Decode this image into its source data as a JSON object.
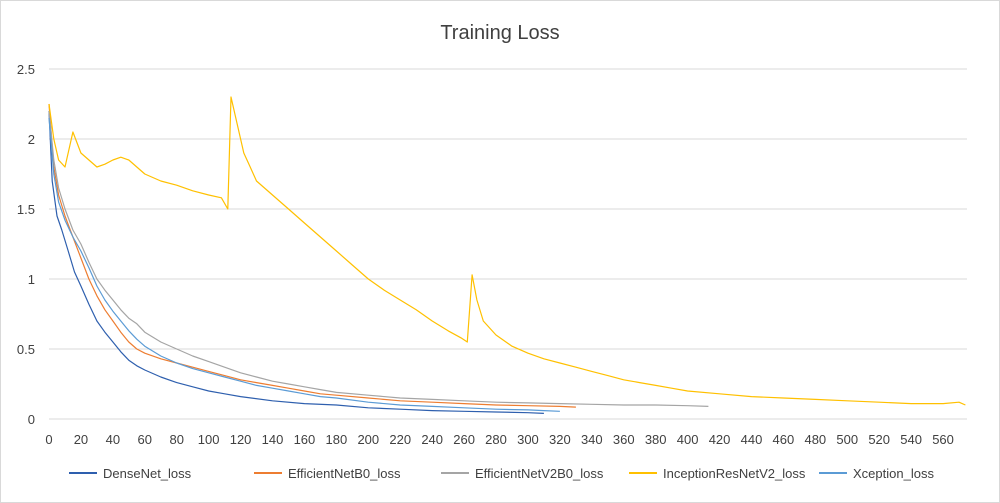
{
  "chart_data": {
    "type": "line",
    "title": "Training Loss",
    "xlabel": "",
    "ylabel": "",
    "xlim": [
      0,
      575
    ],
    "ylim": [
      0,
      2.5
    ],
    "x_ticks": [
      "0",
      "20",
      "40",
      "60",
      "80",
      "100",
      "120",
      "140",
      "160",
      "180",
      "200",
      "220",
      "240",
      "260",
      "280",
      "300",
      "320",
      "340",
      "360",
      "380",
      "400",
      "420",
      "440",
      "460",
      "480",
      "500",
      "520",
      "540",
      "560"
    ],
    "y_ticks": [
      "0",
      "0.5",
      "1",
      "1.5",
      "2",
      "2.5"
    ],
    "grid": true,
    "legend_position": "bottom",
    "series": [
      {
        "name": "DenseNet_loss",
        "color": "#2e5fae",
        "points": [
          [
            0,
            2.2
          ],
          [
            2,
            1.7
          ],
          [
            5,
            1.45
          ],
          [
            8,
            1.35
          ],
          [
            12,
            1.2
          ],
          [
            16,
            1.05
          ],
          [
            20,
            0.95
          ],
          [
            25,
            0.82
          ],
          [
            30,
            0.7
          ],
          [
            35,
            0.62
          ],
          [
            40,
            0.55
          ],
          [
            45,
            0.48
          ],
          [
            50,
            0.42
          ],
          [
            55,
            0.38
          ],
          [
            60,
            0.35
          ],
          [
            70,
            0.3
          ],
          [
            80,
            0.26
          ],
          [
            90,
            0.23
          ],
          [
            100,
            0.2
          ],
          [
            110,
            0.18
          ],
          [
            120,
            0.16
          ],
          [
            140,
            0.13
          ],
          [
            160,
            0.11
          ],
          [
            180,
            0.1
          ],
          [
            200,
            0.08
          ],
          [
            220,
            0.07
          ],
          [
            240,
            0.06
          ],
          [
            260,
            0.055
          ],
          [
            280,
            0.05
          ],
          [
            300,
            0.045
          ],
          [
            310,
            0.04
          ]
        ]
      },
      {
        "name": "EfficientNetB0_loss",
        "color": "#ed7d31",
        "points": [
          [
            0,
            2.25
          ],
          [
            3,
            1.8
          ],
          [
            6,
            1.6
          ],
          [
            10,
            1.45
          ],
          [
            15,
            1.3
          ],
          [
            20,
            1.15
          ],
          [
            25,
            1.0
          ],
          [
            30,
            0.88
          ],
          [
            35,
            0.78
          ],
          [
            40,
            0.7
          ],
          [
            45,
            0.62
          ],
          [
            50,
            0.55
          ],
          [
            55,
            0.5
          ],
          [
            60,
            0.47
          ],
          [
            70,
            0.43
          ],
          [
            80,
            0.4
          ],
          [
            90,
            0.37
          ],
          [
            100,
            0.34
          ],
          [
            110,
            0.31
          ],
          [
            120,
            0.28
          ],
          [
            130,
            0.26
          ],
          [
            140,
            0.24
          ],
          [
            150,
            0.22
          ],
          [
            160,
            0.2
          ],
          [
            170,
            0.18
          ],
          [
            180,
            0.17
          ],
          [
            200,
            0.15
          ],
          [
            220,
            0.13
          ],
          [
            240,
            0.12
          ],
          [
            260,
            0.11
          ],
          [
            280,
            0.1
          ],
          [
            300,
            0.095
          ],
          [
            320,
            0.09
          ],
          [
            330,
            0.085
          ]
        ]
      },
      {
        "name": "EfficientNetV2B0_loss",
        "color": "#a5a5a5",
        "points": [
          [
            0,
            2.2
          ],
          [
            3,
            1.85
          ],
          [
            6,
            1.65
          ],
          [
            10,
            1.5
          ],
          [
            15,
            1.35
          ],
          [
            20,
            1.25
          ],
          [
            25,
            1.12
          ],
          [
            30,
            1.0
          ],
          [
            35,
            0.92
          ],
          [
            40,
            0.85
          ],
          [
            45,
            0.78
          ],
          [
            50,
            0.72
          ],
          [
            55,
            0.68
          ],
          [
            60,
            0.62
          ],
          [
            70,
            0.55
          ],
          [
            80,
            0.5
          ],
          [
            90,
            0.45
          ],
          [
            100,
            0.41
          ],
          [
            110,
            0.37
          ],
          [
            120,
            0.33
          ],
          [
            130,
            0.3
          ],
          [
            140,
            0.27
          ],
          [
            150,
            0.25
          ],
          [
            160,
            0.23
          ],
          [
            170,
            0.21
          ],
          [
            180,
            0.19
          ],
          [
            200,
            0.17
          ],
          [
            220,
            0.15
          ],
          [
            240,
            0.14
          ],
          [
            260,
            0.13
          ],
          [
            280,
            0.12
          ],
          [
            300,
            0.115
          ],
          [
            320,
            0.11
          ],
          [
            340,
            0.105
          ],
          [
            360,
            0.1
          ],
          [
            380,
            0.1
          ],
          [
            400,
            0.095
          ],
          [
            413,
            0.09
          ]
        ]
      },
      {
        "name": "InceptionResNetV2_loss",
        "color": "#ffc000",
        "points": [
          [
            0,
            2.25
          ],
          [
            3,
            2.0
          ],
          [
            6,
            1.85
          ],
          [
            10,
            1.8
          ],
          [
            15,
            2.05
          ],
          [
            20,
            1.9
          ],
          [
            25,
            1.85
          ],
          [
            30,
            1.8
          ],
          [
            35,
            1.82
          ],
          [
            40,
            1.85
          ],
          [
            45,
            1.87
          ],
          [
            50,
            1.85
          ],
          [
            55,
            1.8
          ],
          [
            60,
            1.75
          ],
          [
            70,
            1.7
          ],
          [
            80,
            1.67
          ],
          [
            90,
            1.63
          ],
          [
            100,
            1.6
          ],
          [
            108,
            1.58
          ],
          [
            112,
            1.5
          ],
          [
            114,
            2.3
          ],
          [
            118,
            2.1
          ],
          [
            122,
            1.9
          ],
          [
            126,
            1.8
          ],
          [
            130,
            1.7
          ],
          [
            140,
            1.6
          ],
          [
            150,
            1.5
          ],
          [
            160,
            1.4
          ],
          [
            170,
            1.3
          ],
          [
            180,
            1.2
          ],
          [
            190,
            1.1
          ],
          [
            200,
            1.0
          ],
          [
            210,
            0.92
          ],
          [
            220,
            0.85
          ],
          [
            230,
            0.78
          ],
          [
            240,
            0.7
          ],
          [
            250,
            0.63
          ],
          [
            258,
            0.58
          ],
          [
            262,
            0.55
          ],
          [
            265,
            1.03
          ],
          [
            268,
            0.85
          ],
          [
            272,
            0.7
          ],
          [
            280,
            0.6
          ],
          [
            290,
            0.52
          ],
          [
            300,
            0.47
          ],
          [
            310,
            0.43
          ],
          [
            320,
            0.4
          ],
          [
            330,
            0.37
          ],
          [
            340,
            0.34
          ],
          [
            350,
            0.31
          ],
          [
            360,
            0.28
          ],
          [
            370,
            0.26
          ],
          [
            380,
            0.24
          ],
          [
            390,
            0.22
          ],
          [
            400,
            0.2
          ],
          [
            420,
            0.18
          ],
          [
            440,
            0.16
          ],
          [
            460,
            0.15
          ],
          [
            480,
            0.14
          ],
          [
            500,
            0.13
          ],
          [
            520,
            0.12
          ],
          [
            540,
            0.11
          ],
          [
            560,
            0.11
          ],
          [
            570,
            0.12
          ],
          [
            574,
            0.1
          ]
        ]
      },
      {
        "name": "Xception_loss",
        "color": "#5b9bd5",
        "points": [
          [
            0,
            2.15
          ],
          [
            3,
            1.75
          ],
          [
            6,
            1.55
          ],
          [
            10,
            1.42
          ],
          [
            15,
            1.3
          ],
          [
            20,
            1.2
          ],
          [
            25,
            1.08
          ],
          [
            30,
            0.95
          ],
          [
            35,
            0.85
          ],
          [
            40,
            0.77
          ],
          [
            45,
            0.7
          ],
          [
            50,
            0.63
          ],
          [
            55,
            0.57
          ],
          [
            60,
            0.52
          ],
          [
            70,
            0.45
          ],
          [
            80,
            0.4
          ],
          [
            90,
            0.36
          ],
          [
            100,
            0.33
          ],
          [
            110,
            0.3
          ],
          [
            120,
            0.27
          ],
          [
            130,
            0.24
          ],
          [
            140,
            0.22
          ],
          [
            150,
            0.2
          ],
          [
            160,
            0.18
          ],
          [
            170,
            0.16
          ],
          [
            180,
            0.15
          ],
          [
            200,
            0.12
          ],
          [
            220,
            0.1
          ],
          [
            240,
            0.09
          ],
          [
            260,
            0.08
          ],
          [
            280,
            0.07
          ],
          [
            300,
            0.065
          ],
          [
            310,
            0.06
          ],
          [
            320,
            0.055
          ]
        ]
      }
    ]
  }
}
